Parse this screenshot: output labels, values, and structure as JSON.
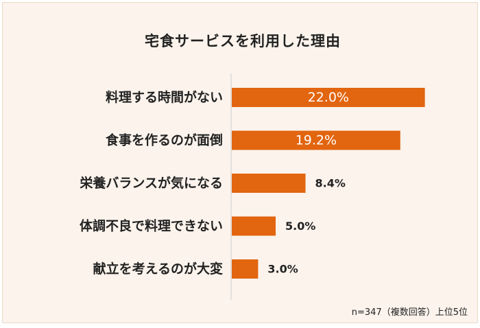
{
  "chart_data": {
    "type": "bar",
    "orientation": "horizontal",
    "title": "宅食サービスを利用した理由",
    "categories": [
      "料理する時間がない",
      "食事を作るのが面倒",
      "栄養バランスが気になる",
      "体調不良で料理できない",
      "献立を考えるのが大変"
    ],
    "values": [
      22.0,
      19.2,
      8.4,
      5.0,
      3.0
    ],
    "value_labels": [
      "22.0%",
      "19.2%",
      "8.4%",
      "5.0%",
      "3.0%"
    ],
    "xlim": [
      0,
      27
    ],
    "grid": false,
    "legend": "none",
    "note": "n=347（複数回答）上位5位",
    "bar_color": "#e2650f",
    "axis_color": "#cccccc",
    "label_inside_color": "#ffffff",
    "label_outside_color": "#222222"
  }
}
